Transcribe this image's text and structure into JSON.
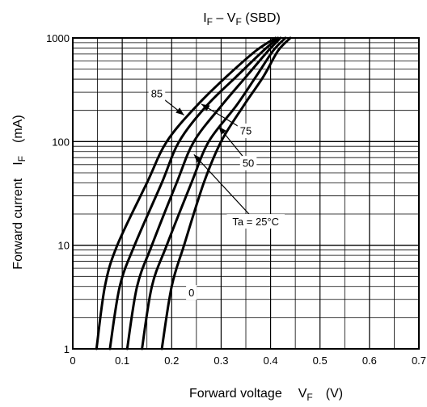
{
  "chart_data": {
    "type": "line",
    "title": {
      "main": "I",
      "main_sub": "F",
      "dash": " – V",
      "dash_sub": "F",
      "suffix": " (SBD)"
    },
    "xlabel": {
      "text": "Forward voltage",
      "symbol": "V",
      "symbol_sub": "F",
      "unit": "(V)"
    },
    "ylabel": {
      "text": "Forward current",
      "symbol": "I",
      "symbol_sub": "F",
      "unit": "(mA)"
    },
    "xlim": [
      0,
      0.7
    ],
    "ylim": [
      1,
      1000
    ],
    "yscale": "log",
    "grid": true,
    "x_ticks": [
      "0",
      "0.1",
      "0.2",
      "0.3",
      "0.4",
      "0.5",
      "0.6",
      "0.7"
    ],
    "y_ticks": [
      "1",
      "10",
      "100",
      "1000"
    ],
    "series": [
      {
        "name": "85",
        "points": [
          [
            0.048,
            1
          ],
          [
            0.065,
            4
          ],
          [
            0.09,
            10
          ],
          [
            0.15,
            40
          ],
          [
            0.19,
            100
          ],
          [
            0.25,
            220
          ],
          [
            0.31,
            420
          ],
          [
            0.37,
            750
          ],
          [
            0.41,
            1000
          ]
        ]
      },
      {
        "name": "75",
        "points": [
          [
            0.075,
            1
          ],
          [
            0.095,
            4
          ],
          [
            0.125,
            10
          ],
          [
            0.18,
            40
          ],
          [
            0.215,
            100
          ],
          [
            0.27,
            220
          ],
          [
            0.33,
            420
          ],
          [
            0.385,
            750
          ],
          [
            0.415,
            1000
          ]
        ]
      },
      {
        "name": "50",
        "points": [
          [
            0.11,
            1
          ],
          [
            0.13,
            4
          ],
          [
            0.16,
            10
          ],
          [
            0.21,
            40
          ],
          [
            0.245,
            100
          ],
          [
            0.3,
            220
          ],
          [
            0.35,
            420
          ],
          [
            0.395,
            750
          ],
          [
            0.42,
            1000
          ]
        ]
      },
      {
        "name": "Ta = 25°C",
        "points": [
          [
            0.14,
            1
          ],
          [
            0.16,
            4
          ],
          [
            0.19,
            10
          ],
          [
            0.24,
            40
          ],
          [
            0.275,
            100
          ],
          [
            0.33,
            220
          ],
          [
            0.37,
            420
          ],
          [
            0.405,
            750
          ],
          [
            0.43,
            1000
          ]
        ]
      },
      {
        "name": "0",
        "points": [
          [
            0.18,
            1
          ],
          [
            0.2,
            4
          ],
          [
            0.225,
            10
          ],
          [
            0.265,
            40
          ],
          [
            0.3,
            100
          ],
          [
            0.345,
            220
          ],
          [
            0.385,
            420
          ],
          [
            0.415,
            750
          ],
          [
            0.44,
            1000
          ]
        ]
      }
    ],
    "annotations": [
      {
        "text": "85",
        "series": "85",
        "at": [
          0.225,
          180
        ],
        "label_at": [
          0.17,
          290
        ]
      },
      {
        "text": "75",
        "series": "75",
        "at": [
          0.26,
          230
        ],
        "label_at": [
          0.35,
          127
        ]
      },
      {
        "text": "50",
        "series": "50",
        "at": [
          0.295,
          140
        ],
        "label_at": [
          0.355,
          62
        ]
      },
      {
        "text": "Ta = 25°C",
        "series": "Ta = 25°C",
        "at": [
          0.245,
          75
        ],
        "label_at": [
          0.37,
          17
        ]
      },
      {
        "text": "0",
        "series": "0",
        "at": null,
        "label_at": [
          0.24,
          3.5
        ]
      }
    ]
  }
}
